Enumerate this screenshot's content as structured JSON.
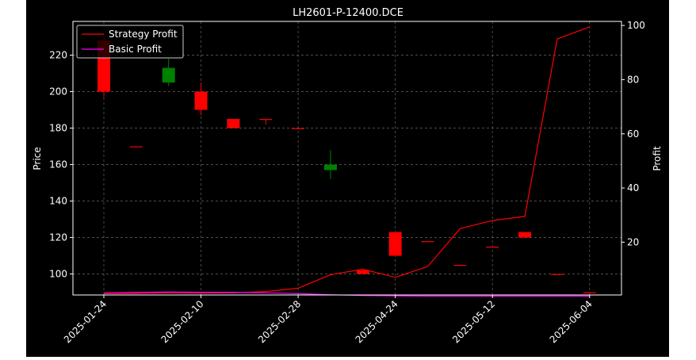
{
  "chart_data": {
    "title": "LH2601-P-12400.DCE",
    "ylabel_left": "Price",
    "ylabel_right": "Profit",
    "xlabel": "",
    "grid": true,
    "legend_position": "top-left",
    "x_tick_labels": [
      "2025-01-24",
      "2025-02-10",
      "2025-02-28",
      "2025-04-24",
      "2025-05-12",
      "2025-06-04"
    ],
    "left_axis": {
      "ylim": [
        88.5,
        238.5
      ],
      "ticks": [
        100,
        120,
        140,
        160,
        180,
        200,
        220
      ]
    },
    "right_axis": {
      "ylim": [
        0.5,
        101.5
      ],
      "ticks": [
        20,
        40,
        60,
        80,
        100
      ]
    },
    "candles": {
      "type": "candlestick",
      "index": [
        0,
        1,
        2,
        3,
        4,
        5,
        6,
        7,
        8,
        9,
        10,
        11,
        12,
        13,
        14,
        15
      ],
      "open": [
        228,
        170,
        205,
        200,
        185,
        185,
        180,
        157,
        102,
        123,
        118,
        105,
        115,
        123,
        100,
        90
      ],
      "close": [
        200,
        170,
        213,
        190,
        180,
        184.5,
        180,
        160,
        100,
        110,
        117.5,
        105,
        115,
        120,
        100,
        90
      ],
      "high": [
        232,
        170,
        218,
        205,
        185,
        185,
        180,
        168,
        103,
        123,
        118,
        105,
        115,
        123,
        100,
        90
      ],
      "low": [
        197,
        170,
        203,
        187,
        180,
        182,
        180,
        152,
        100,
        110,
        117.5,
        105,
        115,
        120,
        100,
        90
      ],
      "colors": {
        "up": "#008000",
        "down": "#ff0000"
      }
    },
    "series": [
      {
        "name": "Strategy Profit",
        "color": "#ff0000",
        "x": [
          0,
          1,
          2,
          3,
          4,
          5,
          6,
          7,
          8,
          9,
          10,
          11,
          12,
          13,
          14,
          15
        ],
        "values": [
          1,
          1.1,
          1.3,
          1.2,
          1.3,
          1.8,
          3,
          8,
          10,
          7,
          11,
          25,
          28,
          29.5,
          95,
          99.5
        ]
      },
      {
        "name": "Basic Profit",
        "color": "#ff00ff",
        "x": [
          0,
          1,
          2,
          3,
          4,
          5,
          6,
          7,
          8,
          9,
          10,
          11,
          12,
          13,
          14,
          15
        ],
        "values": [
          1.3,
          1.4,
          1.6,
          1.5,
          1.5,
          1.3,
          1,
          0.6,
          0.3,
          0.2,
          0.1,
          0.1,
          0.1,
          0.1,
          0.1,
          0.1
        ]
      }
    ]
  }
}
